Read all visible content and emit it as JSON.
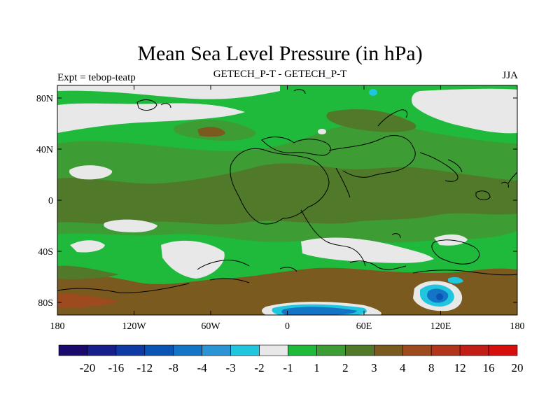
{
  "title": "Mean Sea Level Pressure (in hPa)",
  "subtitle_left": "Expt = tebop-teatp",
  "subtitle_center": "GETECH_P-T - GETECH_P-T",
  "subtitle_right": "JJA",
  "x_ticks": [
    "180",
    "120W",
    "60W",
    "0",
    "60E",
    "120E",
    "180"
  ],
  "y_ticks": [
    "80N",
    "40N",
    "0",
    "40S",
    "80S"
  ],
  "colorbar": {
    "colors": [
      "#1a0a6e",
      "#161f8a",
      "#103aa3",
      "#0a55b4",
      "#1475c6",
      "#2a94d4",
      "#1fc6de",
      "#e8e8e8",
      "#1fba3c",
      "#3d9d34",
      "#507a2a",
      "#7a5a1f",
      "#9c4a1e",
      "#b2341c",
      "#c01e16",
      "#d60e0e"
    ],
    "labels": [
      "-20",
      "-16",
      "-12",
      "-8",
      "-4",
      "-3",
      "-2",
      "-1",
      "1",
      "2",
      "3",
      "4",
      "8",
      "12",
      "16",
      "20"
    ]
  }
}
